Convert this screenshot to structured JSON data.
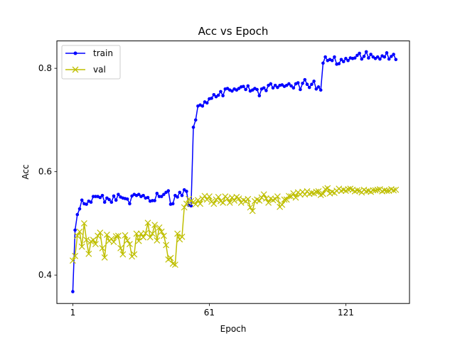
{
  "chart_data": {
    "type": "line",
    "title": "Acc vs Epoch",
    "xlabel": "Epoch",
    "ylabel": "Acc",
    "xlim": [
      -6,
      149
    ],
    "ylim": [
      0.345,
      0.853
    ],
    "xticks": [
      1,
      61,
      121
    ],
    "yticks": [
      0.4,
      0.6,
      0.8
    ],
    "ytick_labels": [
      "0.4",
      "0.6",
      "0.8"
    ],
    "grid": false,
    "legend_position": "top-left",
    "series": [
      {
        "name": "train",
        "color": "#0000ff",
        "marker": "dot",
        "x": [
          1,
          2,
          3,
          4,
          5,
          6,
          7,
          8,
          9,
          10,
          11,
          12,
          13,
          14,
          15,
          16,
          17,
          18,
          19,
          20,
          21,
          22,
          23,
          24,
          25,
          26,
          27,
          28,
          29,
          30,
          31,
          32,
          33,
          34,
          35,
          36,
          37,
          38,
          39,
          40,
          41,
          42,
          43,
          44,
          45,
          46,
          47,
          48,
          49,
          50,
          51,
          52,
          53,
          54,
          55,
          56,
          57,
          58,
          59,
          60,
          61,
          62,
          63,
          64,
          65,
          66,
          67,
          68,
          69,
          70,
          71,
          72,
          73,
          74,
          75,
          76,
          77,
          78,
          79,
          80,
          81,
          82,
          83,
          84,
          85,
          86,
          87,
          88,
          89,
          90,
          91,
          92,
          93,
          94,
          95,
          96,
          97,
          98,
          99,
          100,
          101,
          102,
          103,
          104,
          105,
          106,
          107,
          108,
          109,
          110,
          111,
          112,
          113,
          114,
          115,
          116,
          117,
          118,
          119,
          120,
          121,
          122,
          123,
          124,
          125,
          126,
          127,
          128,
          129,
          130,
          131,
          132,
          133,
          134,
          135,
          136,
          137,
          138,
          139,
          140,
          141,
          142,
          143
        ],
        "y": [
          0.368,
          0.487,
          0.517,
          0.528,
          0.545,
          0.538,
          0.537,
          0.543,
          0.541,
          0.552,
          0.552,
          0.552,
          0.55,
          0.554,
          0.541,
          0.549,
          0.546,
          0.541,
          0.553,
          0.545,
          0.556,
          0.551,
          0.549,
          0.548,
          0.547,
          0.538,
          0.553,
          0.556,
          0.554,
          0.556,
          0.552,
          0.554,
          0.549,
          0.55,
          0.543,
          0.544,
          0.544,
          0.558,
          0.552,
          0.552,
          0.556,
          0.56,
          0.563,
          0.537,
          0.538,
          0.554,
          0.551,
          0.56,
          0.554,
          0.565,
          0.562,
          0.535,
          0.534,
          0.686,
          0.7,
          0.727,
          0.729,
          0.727,
          0.735,
          0.733,
          0.741,
          0.742,
          0.749,
          0.745,
          0.748,
          0.755,
          0.747,
          0.76,
          0.761,
          0.758,
          0.756,
          0.76,
          0.758,
          0.761,
          0.764,
          0.765,
          0.759,
          0.766,
          0.756,
          0.758,
          0.761,
          0.759,
          0.747,
          0.76,
          0.762,
          0.757,
          0.767,
          0.77,
          0.762,
          0.767,
          0.763,
          0.767,
          0.768,
          0.765,
          0.767,
          0.77,
          0.766,
          0.762,
          0.77,
          0.772,
          0.759,
          0.771,
          0.778,
          0.769,
          0.763,
          0.769,
          0.775,
          0.76,
          0.764,
          0.758,
          0.81,
          0.822,
          0.815,
          0.817,
          0.815,
          0.822,
          0.808,
          0.809,
          0.817,
          0.813,
          0.819,
          0.815,
          0.82,
          0.819,
          0.82,
          0.825,
          0.829,
          0.818,
          0.823,
          0.832,
          0.82,
          0.827,
          0.822,
          0.819,
          0.822,
          0.818,
          0.824,
          0.822,
          0.83,
          0.818,
          0.823,
          0.827,
          0.817
        ]
      },
      {
        "name": "val",
        "color": "#bfbf00",
        "marker": "x",
        "x": [
          1,
          2,
          3,
          4,
          5,
          6,
          7,
          8,
          9,
          10,
          11,
          12,
          13,
          14,
          15,
          16,
          17,
          18,
          19,
          20,
          21,
          22,
          23,
          24,
          25,
          26,
          27,
          28,
          29,
          30,
          31,
          32,
          33,
          34,
          35,
          36,
          37,
          38,
          39,
          40,
          41,
          42,
          43,
          44,
          45,
          46,
          47,
          48,
          49,
          50,
          51,
          52,
          53,
          54,
          55,
          56,
          57,
          58,
          59,
          60,
          61,
          62,
          63,
          64,
          65,
          66,
          67,
          68,
          69,
          70,
          71,
          72,
          73,
          74,
          75,
          76,
          77,
          78,
          79,
          80,
          81,
          82,
          83,
          84,
          85,
          86,
          87,
          88,
          89,
          90,
          91,
          92,
          93,
          94,
          95,
          96,
          97,
          98,
          99,
          100,
          101,
          102,
          103,
          104,
          105,
          106,
          107,
          108,
          109,
          110,
          111,
          112,
          113,
          114,
          115,
          116,
          117,
          118,
          119,
          120,
          121,
          122,
          123,
          124,
          125,
          126,
          127,
          128,
          129,
          130,
          131,
          132,
          133,
          134,
          135,
          136,
          137,
          138,
          139,
          140,
          141,
          142,
          143
        ],
        "y": [
          0.428,
          0.437,
          0.476,
          0.484,
          0.455,
          0.5,
          0.468,
          0.441,
          0.465,
          0.468,
          0.46,
          0.476,
          0.482,
          0.452,
          0.434,
          0.478,
          0.466,
          0.47,
          0.464,
          0.475,
          0.476,
          0.452,
          0.44,
          0.477,
          0.467,
          0.46,
          0.436,
          0.44,
          0.48,
          0.466,
          0.48,
          0.473,
          0.481,
          0.501,
          0.473,
          0.48,
          0.497,
          0.467,
          0.492,
          0.484,
          0.476,
          0.458,
          0.43,
          0.433,
          0.422,
          0.42,
          0.48,
          0.469,
          0.474,
          0.531,
          0.538,
          0.547,
          0.543,
          0.541,
          0.537,
          0.545,
          0.538,
          0.548,
          0.553,
          0.546,
          0.552,
          0.542,
          0.538,
          0.546,
          0.551,
          0.543,
          0.54,
          0.552,
          0.548,
          0.54,
          0.55,
          0.544,
          0.551,
          0.548,
          0.54,
          0.545,
          0.543,
          0.547,
          0.531,
          0.524,
          0.543,
          0.546,
          0.544,
          0.55,
          0.556,
          0.548,
          0.54,
          0.548,
          0.545,
          0.547,
          0.552,
          0.532,
          0.536,
          0.546,
          0.546,
          0.553,
          0.552,
          0.558,
          0.55,
          0.56,
          0.556,
          0.561,
          0.556,
          0.562,
          0.557,
          0.559,
          0.558,
          0.561,
          0.562,
          0.555,
          0.557,
          0.566,
          0.568,
          0.558,
          0.561,
          0.559,
          0.563,
          0.567,
          0.563,
          0.565,
          0.563,
          0.566,
          0.567,
          0.565,
          0.562,
          0.564,
          0.563,
          0.56,
          0.565,
          0.562,
          0.563,
          0.561,
          0.564,
          0.564,
          0.565,
          0.566,
          0.562,
          0.564,
          0.563,
          0.563,
          0.566,
          0.564,
          0.565
        ]
      }
    ]
  }
}
